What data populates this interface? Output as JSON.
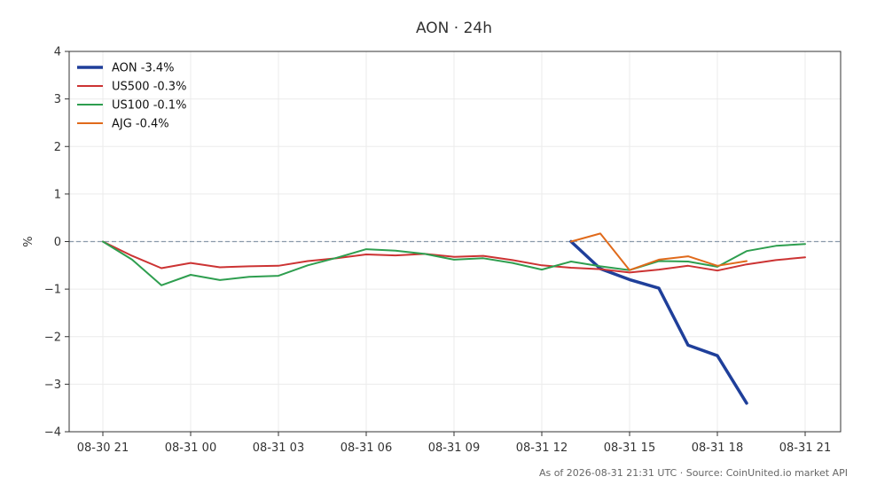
{
  "chart_data": {
    "type": "line",
    "title": "AON · 24h",
    "ylabel": "%",
    "footer": "As of 2026-08-31 21:31 UTC · Source: CoinUnited.io market API",
    "xlim": [
      0,
      24
    ],
    "ylim": [
      -4,
      4
    ],
    "x_ticks": [
      {
        "x": 0,
        "label": "08-30 21"
      },
      {
        "x": 3,
        "label": "08-31 00"
      },
      {
        "x": 6,
        "label": "08-31 03"
      },
      {
        "x": 9,
        "label": "08-31 06"
      },
      {
        "x": 12,
        "label": "08-31 09"
      },
      {
        "x": 15,
        "label": "08-31 12"
      },
      {
        "x": 18,
        "label": "08-31 15"
      },
      {
        "x": 21,
        "label": "08-31 18"
      },
      {
        "x": 24,
        "label": "08-31 21"
      }
    ],
    "y_ticks": [
      {
        "v": 4,
        "label": "4"
      },
      {
        "v": 3,
        "label": "3"
      },
      {
        "v": 2,
        "label": "2"
      },
      {
        "v": 1,
        "label": "1"
      },
      {
        "v": 0,
        "label": "0"
      },
      {
        "v": -1,
        "label": "−1"
      },
      {
        "v": -2,
        "label": "−2"
      },
      {
        "v": -3,
        "label": "−3"
      },
      {
        "v": -4,
        "label": "−4"
      }
    ],
    "grid": true,
    "legend_position": "top-left",
    "zero_line": true,
    "series": [
      {
        "name": "AON -3.4%",
        "color": "#1f3f9a",
        "bold": true,
        "x": [
          16,
          17,
          18,
          19,
          20,
          21,
          22
        ],
        "y": [
          0.0,
          -0.57,
          -0.8,
          -0.98,
          -2.18,
          -2.4,
          -3.4
        ]
      },
      {
        "name": "US500 -0.3%",
        "color": "#cc3333",
        "bold": false,
        "x": [
          0,
          1,
          2,
          3,
          4,
          5,
          6,
          7,
          8,
          9,
          10,
          11,
          12,
          13,
          14,
          15,
          16,
          17,
          18,
          19,
          20,
          21,
          22,
          23,
          24
        ],
        "y": [
          0.0,
          -0.3,
          -0.56,
          -0.45,
          -0.54,
          -0.52,
          -0.51,
          -0.41,
          -0.35,
          -0.27,
          -0.29,
          -0.26,
          -0.32,
          -0.3,
          -0.39,
          -0.5,
          -0.55,
          -0.58,
          -0.65,
          -0.59,
          -0.51,
          -0.61,
          -0.48,
          -0.39,
          -0.33
        ]
      },
      {
        "name": "US100 -0.1%",
        "color": "#2e9e4f",
        "bold": false,
        "x": [
          0,
          1,
          2,
          3,
          4,
          5,
          6,
          7,
          8,
          9,
          10,
          11,
          12,
          13,
          14,
          15,
          16,
          17,
          18,
          19,
          20,
          21,
          22,
          23,
          24
        ],
        "y": [
          0.0,
          -0.38,
          -0.92,
          -0.7,
          -0.81,
          -0.74,
          -0.72,
          -0.5,
          -0.34,
          -0.16,
          -0.19,
          -0.26,
          -0.38,
          -0.35,
          -0.45,
          -0.59,
          -0.42,
          -0.52,
          -0.6,
          -0.41,
          -0.42,
          -0.53,
          -0.2,
          -0.09,
          -0.05
        ]
      },
      {
        "name": "AJG -0.4%",
        "color": "#e06a1b",
        "bold": false,
        "x": [
          16,
          17,
          18,
          19,
          20,
          21,
          22
        ],
        "y": [
          0.0,
          0.17,
          -0.6,
          -0.38,
          -0.31,
          -0.51,
          -0.41
        ]
      }
    ]
  }
}
